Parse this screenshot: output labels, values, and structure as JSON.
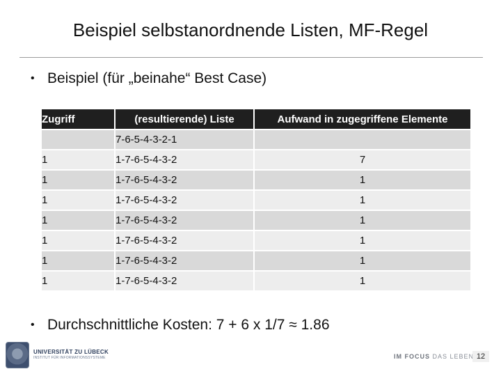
{
  "slide": {
    "title": "Beispiel selbstanordnende Listen, MF-Regel",
    "bullet1": "Beispiel (für „beinahe“ Best Case)",
    "bullet2": "Durchschnittliche Kosten: 7 + 6 x 1/7 ≈ 1.86",
    "page_number": "12"
  },
  "table": {
    "headers": [
      "Zugriff",
      "(resultierende) Liste",
      "Aufwand in zugegriffene Elemente"
    ],
    "initial_row": [
      "",
      "7-6-5-4-3-2-1",
      ""
    ],
    "rows": [
      [
        "1",
        "1-7-6-5-4-3-2",
        "7"
      ],
      [
        "1",
        "1-7-6-5-4-3-2",
        "1"
      ],
      [
        "1",
        "1-7-6-5-4-3-2",
        "1"
      ],
      [
        "1",
        "1-7-6-5-4-3-2",
        "1"
      ],
      [
        "1",
        "1-7-6-5-4-3-2",
        "1"
      ],
      [
        "1",
        "1-7-6-5-4-3-2",
        "1"
      ],
      [
        "1",
        "1-7-6-5-4-3-2",
        "1"
      ]
    ]
  },
  "footer": {
    "university_name": "UNIVERSITÄT ZU LÜBECK",
    "institute": "INSTITUT FÜR INFORMATIONSSYSTEME",
    "slogan_lead": "IM FOCUS",
    "slogan_rest": " DAS LEBEN"
  },
  "icons": {
    "logo": "university-seal-icon"
  }
}
